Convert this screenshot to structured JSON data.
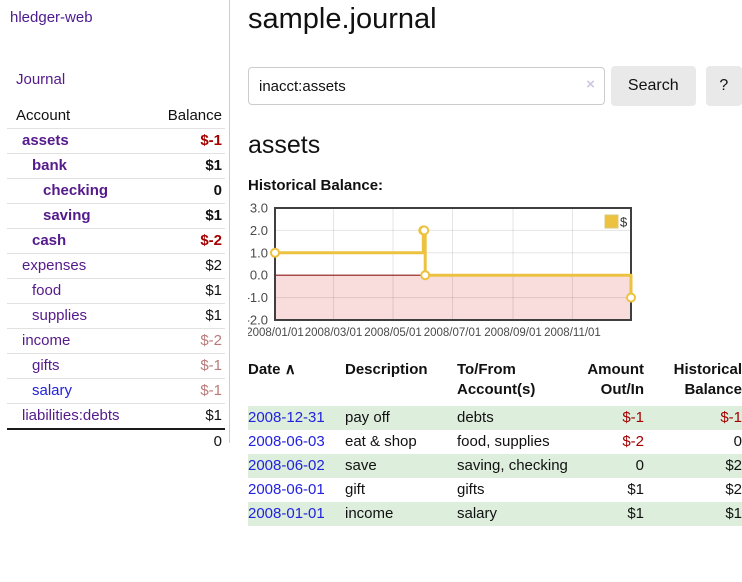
{
  "app": {
    "title": "hledger-web"
  },
  "colors": {
    "link_purple": "#551A8B",
    "link_blue": "#2222dd",
    "negative": "#a40000",
    "negative_muted": "#bb7a7a",
    "row_shade_green": "#ddeedd",
    "chart_series_yellow": "#edc240",
    "chart_negative_region": "#f9dcdc",
    "chart_zero_line": "#8b1a1a",
    "button_gray": "#e9e9e9"
  },
  "sidebar": {
    "journal_link": "Journal",
    "accounts_table": {
      "headers": {
        "account": "Account",
        "balance": "Balance"
      },
      "rows": [
        {
          "account": "assets",
          "balance": "$-1",
          "indent": 1,
          "bold": true,
          "balance_style": "neg"
        },
        {
          "account": "bank",
          "balance": "$1",
          "indent": 2,
          "bold": true,
          "balance_style": "pos"
        },
        {
          "account": "checking",
          "balance": "0",
          "indent": 3,
          "bold": true,
          "balance_style": "pos"
        },
        {
          "account": "saving",
          "balance": "$1",
          "indent": 3,
          "bold": true,
          "balance_style": "pos"
        },
        {
          "account": "cash",
          "balance": "$-2",
          "indent": 2,
          "bold": true,
          "balance_style": "neg"
        },
        {
          "account": "expenses",
          "balance": "$2",
          "indent": 1,
          "bold": false,
          "balance_style": "pos"
        },
        {
          "account": "food",
          "balance": "$1",
          "indent": 2,
          "bold": false,
          "balance_style": "pos"
        },
        {
          "account": "supplies",
          "balance": "$1",
          "indent": 2,
          "bold": false,
          "balance_style": "pos"
        },
        {
          "account": "income",
          "balance": "$-2",
          "indent": 1,
          "bold": false,
          "balance_style": "neg-muted"
        },
        {
          "account": "gifts",
          "balance": "$-1",
          "indent": 2,
          "bold": false,
          "balance_style": "neg-muted"
        },
        {
          "account": "salary",
          "balance": "$-1",
          "indent": 2,
          "bold": false,
          "balance_style": "neg-muted",
          "link_style": "unvisited"
        },
        {
          "account": "liabilities:debts",
          "balance": "$1",
          "indent": 1,
          "bold": false,
          "balance_style": "pos"
        }
      ],
      "total": "0"
    }
  },
  "header": {
    "title": "sample.journal"
  },
  "search": {
    "value": "inacct:assets",
    "clear_icon": "×",
    "button_label": "Search",
    "help_label": "?"
  },
  "account_page": {
    "heading": "assets",
    "chart_title": "Historical Balance:"
  },
  "chart_data": {
    "type": "line",
    "steps": true,
    "title": "Historical Balance:",
    "series": [
      {
        "name": "$",
        "color": "#edc240",
        "points": [
          {
            "date": "2008-01-01",
            "value": 1
          },
          {
            "date": "2008-06-01",
            "value": 2
          },
          {
            "date": "2008-06-02",
            "value": 2
          },
          {
            "date": "2008-06-03",
            "value": 0
          },
          {
            "date": "2008-12-31",
            "value": -1
          }
        ]
      }
    ],
    "xlim": [
      "2008-01-01",
      "2008-12-31"
    ],
    "ylim": [
      -2,
      3
    ],
    "x_tick_labels": [
      "2008/01/01",
      "2008/03/01",
      "2008/05/01",
      "2008/07/01",
      "2008/09/01",
      "2008/11/01"
    ],
    "y_tick_labels": [
      "3.0",
      "2.0",
      "1.0",
      "0.0",
      "-1.0",
      "-2.0"
    ],
    "y_tick_values": [
      3,
      2,
      1,
      0,
      -1,
      -2
    ],
    "grid": true,
    "legend_position": "top-right",
    "negative_region_shaded": true
  },
  "register": {
    "headers": {
      "date": "Date",
      "sort_indicator": "∧",
      "description": "Description",
      "account": {
        "line1": "To/From",
        "line2": "Account(s)"
      },
      "amount": {
        "line1": "Amount",
        "line2": "Out/In"
      },
      "balance": {
        "line1": "Historical",
        "line2": "Balance"
      }
    },
    "rows": [
      {
        "date": "2008-12-31",
        "description": "pay off",
        "accounts": "debts",
        "amount": "$-1",
        "balance": "$-1",
        "amount_style": "neg",
        "balance_style": "neg",
        "shaded": true
      },
      {
        "date": "2008-06-03",
        "description": "eat & shop",
        "accounts": "food, supplies",
        "amount": "$-2",
        "balance": "0",
        "amount_style": "neg",
        "balance_style": "pos",
        "shaded": false
      },
      {
        "date": "2008-06-02",
        "description": "save",
        "accounts": "saving, checking",
        "amount": "0",
        "balance": "$2",
        "amount_style": "pos",
        "balance_style": "pos",
        "shaded": true
      },
      {
        "date": "2008-06-01",
        "description": "gift",
        "accounts": "gifts",
        "amount": "$1",
        "balance": "$2",
        "amount_style": "pos",
        "balance_style": "pos",
        "shaded": false
      },
      {
        "date": "2008-01-01",
        "description": "income",
        "accounts": "salary",
        "amount": "$1",
        "balance": "$1",
        "amount_style": "pos",
        "balance_style": "pos",
        "shaded": true
      }
    ]
  }
}
